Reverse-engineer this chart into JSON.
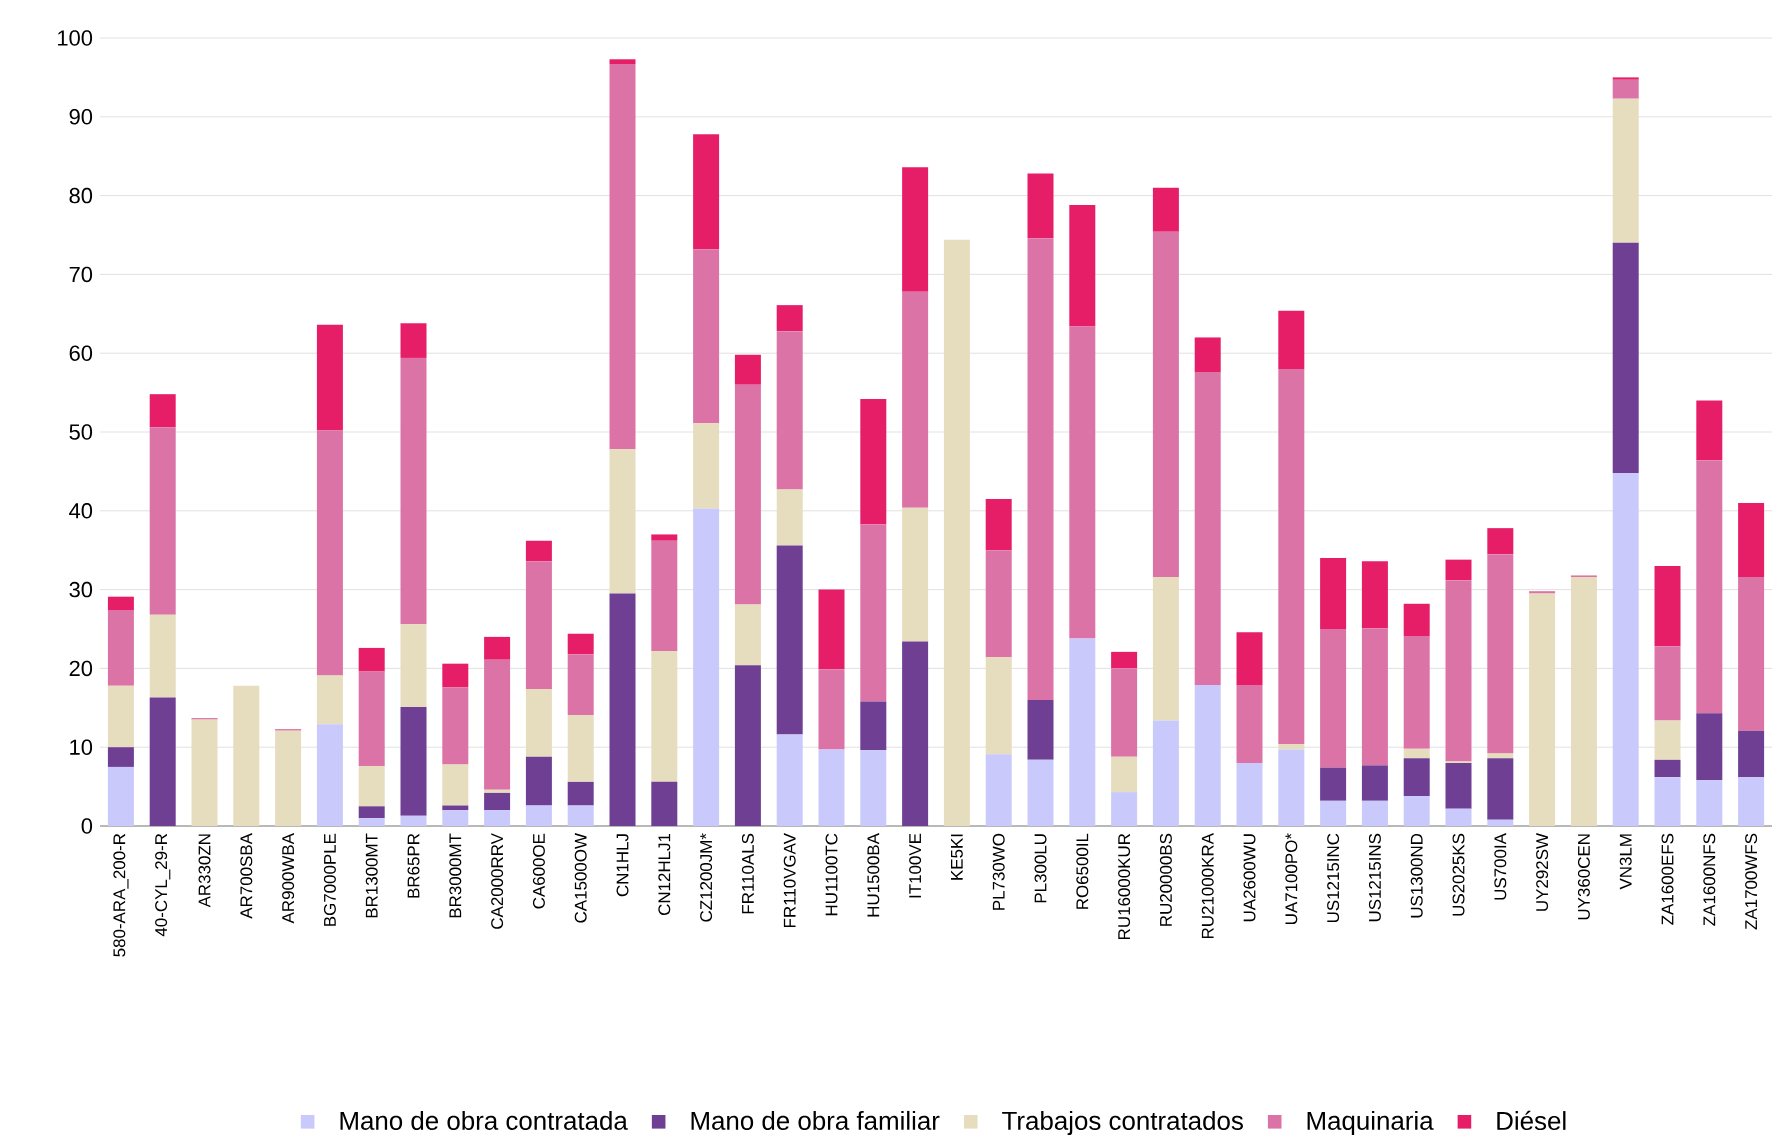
{
  "chart_data": {
    "type": "bar",
    "stacked": true,
    "grid": "y",
    "legend": "bottom",
    "ylim": [
      0,
      100
    ],
    "yticks": [
      0,
      10,
      20,
      30,
      40,
      50,
      60,
      70,
      80,
      90,
      100
    ],
    "categories": [
      "580-ARA_200-R",
      "40-CYL_29-R",
      "AR330ZN",
      "AR700SBA",
      "AR900WBA",
      "BG7000PLE",
      "BR1300MT",
      "BR65PR",
      "BR3000MT",
      "CA2000RRV",
      "CA600OE",
      "CA1500OW",
      "CN1HLJ",
      "CN12HLJ1",
      "CZ1200JM*",
      "FR110ALS",
      "FR110VGAV",
      "HU1100TC",
      "HU1500BA",
      "IT100VE",
      "KE5KI",
      "PL730WO",
      "PL300LU",
      "RO6500IL",
      "RU16000KUR",
      "RU20000BS",
      "RU21000KRA",
      "UA2600WU",
      "UA7100PO*",
      "US1215INC",
      "US1215INS",
      "US1300ND",
      "US2025KS",
      "US700IA",
      "UY292SW",
      "UY360CEN",
      "VN3LM",
      "ZA1600EFS",
      "ZA1600NFS",
      "ZA1700WFS"
    ],
    "series": [
      {
        "name": "Mano de obra contratada",
        "color": "#c9c9fb",
        "values": [
          7.5,
          0,
          0,
          0,
          0,
          12.9,
          1.0,
          1.3,
          2.0,
          2.0,
          2.6,
          2.6,
          0,
          0,
          40.3,
          0,
          11.6,
          9.7,
          9.6,
          0,
          0,
          9.1,
          8.4,
          23.8,
          4.3,
          13.4,
          17.9,
          8.0,
          9.7,
          3.2,
          3.2,
          3.8,
          2.2,
          0.8,
          0,
          0,
          44.8,
          6.2,
          5.8,
          6.2
        ]
      },
      {
        "name": "Mano de obra familiar",
        "color": "#6e3f93",
        "values": [
          2.5,
          16.3,
          0,
          0,
          0,
          0,
          1.5,
          13.8,
          0.6,
          2.2,
          6.2,
          3.0,
          29.5,
          5.6,
          0,
          20.4,
          24.0,
          0,
          6.2,
          23.4,
          0,
          0,
          7.6,
          0,
          0,
          0,
          0,
          0,
          0,
          4.2,
          4.5,
          4.8,
          5.8,
          7.8,
          0,
          0,
          29.2,
          2.2,
          8.5,
          5.9
        ]
      },
      {
        "name": "Trabajos contratados",
        "color": "#e6dcbe",
        "values": [
          7.8,
          10.5,
          13.5,
          17.8,
          12.1,
          6.2,
          5.1,
          10.5,
          5.2,
          0.4,
          8.6,
          8.5,
          18.3,
          16.6,
          10.8,
          7.7,
          7.1,
          0,
          0,
          17.0,
          74.4,
          12.3,
          0,
          0,
          4.5,
          18.2,
          0,
          0,
          0.7,
          0,
          0,
          1.2,
          0.2,
          0.6,
          29.5,
          31.6,
          18.3,
          5.0,
          0,
          0
        ]
      },
      {
        "name": "Maquinaria",
        "color": "#dc73a7",
        "values": [
          9.6,
          23.8,
          0.2,
          0,
          0.2,
          31.1,
          12.0,
          33.8,
          9.8,
          16.5,
          16.2,
          7.7,
          48.9,
          14.0,
          22.1,
          27.9,
          20.1,
          10.2,
          22.5,
          27.4,
          0,
          13.6,
          58.6,
          39.6,
          11.2,
          43.8,
          39.7,
          9.9,
          47.6,
          17.6,
          17.4,
          14.3,
          23.0,
          25.3,
          0.3,
          0.2,
          2.4,
          9.4,
          32.1,
          19.5
        ]
      },
      {
        "name": "Diésel",
        "color": "#e61e68",
        "values": [
          1.7,
          4.2,
          0,
          0,
          0,
          13.4,
          3.0,
          4.4,
          3.0,
          2.9,
          2.6,
          2.6,
          0.6,
          0.8,
          14.6,
          3.8,
          3.3,
          10.1,
          15.9,
          15.8,
          0,
          6.5,
          8.2,
          15.4,
          2.1,
          5.6,
          4.4,
          6.7,
          7.4,
          9.0,
          8.5,
          4.1,
          2.6,
          3.3,
          0,
          0,
          0.3,
          10.2,
          7.6,
          9.4
        ]
      }
    ]
  }
}
